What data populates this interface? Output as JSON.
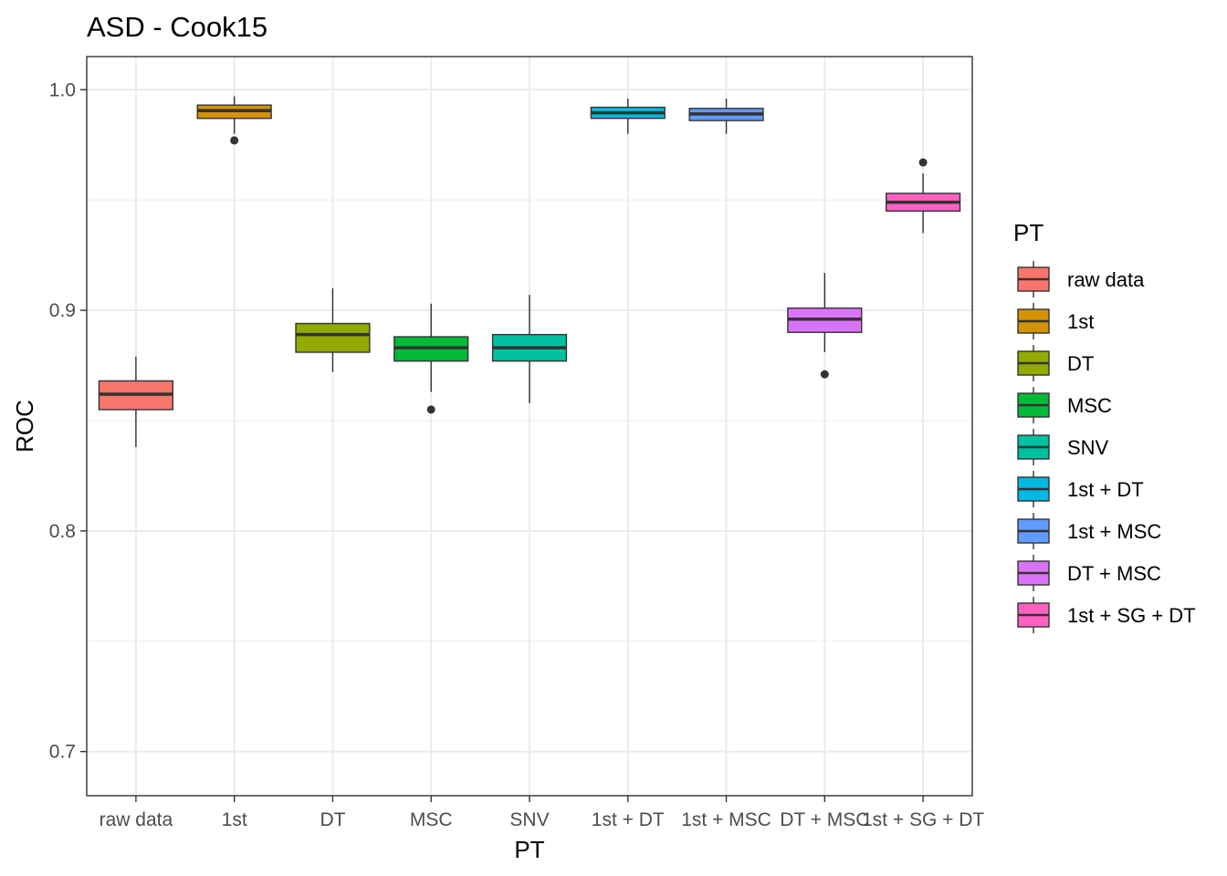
{
  "chart_data": {
    "type": "boxplot",
    "title": "ASD - Cook15",
    "xlabel": "PT",
    "ylabel": "ROC",
    "ylim": [
      0.68,
      1.015
    ],
    "yticks": [
      0.7,
      0.8,
      0.9,
      1.0
    ],
    "ytick_labels": [
      "0.7",
      "0.8",
      "0.9",
      "1.0"
    ],
    "grid": true,
    "legend": {
      "title": "PT",
      "position": "right"
    },
    "categories": [
      "raw data",
      "1st",
      "DT",
      "MSC",
      "SNV",
      "1st + DT",
      "1st + MSC",
      "DT + MSC",
      "1st + SG + DT"
    ],
    "series": [
      {
        "name": "raw data",
        "color": "#F8766D",
        "min": 0.838,
        "q1": 0.855,
        "median": 0.862,
        "q3": 0.868,
        "max": 0.879,
        "outliers": []
      },
      {
        "name": "1st",
        "color": "#D39200",
        "min": 0.98,
        "q1": 0.987,
        "median": 0.9905,
        "q3": 0.993,
        "max": 0.997,
        "outliers": [
          0.977
        ]
      },
      {
        "name": "DT",
        "color": "#93AA00",
        "min": 0.872,
        "q1": 0.881,
        "median": 0.889,
        "q3": 0.894,
        "max": 0.91,
        "outliers": []
      },
      {
        "name": "MSC",
        "color": "#00BA38",
        "min": 0.863,
        "q1": 0.877,
        "median": 0.883,
        "q3": 0.888,
        "max": 0.903,
        "outliers": [
          0.855
        ]
      },
      {
        "name": "SNV",
        "color": "#00C19F",
        "min": 0.858,
        "q1": 0.877,
        "median": 0.883,
        "q3": 0.889,
        "max": 0.907,
        "outliers": []
      },
      {
        "name": "1st + DT",
        "color": "#00B9E3",
        "min": 0.98,
        "q1": 0.987,
        "median": 0.9895,
        "q3": 0.992,
        "max": 0.996,
        "outliers": []
      },
      {
        "name": "1st + MSC",
        "color": "#619CFF",
        "min": 0.98,
        "q1": 0.986,
        "median": 0.989,
        "q3": 0.9915,
        "max": 0.996,
        "outliers": []
      },
      {
        "name": "DT + MSC",
        "color": "#DB72FB",
        "min": 0.881,
        "q1": 0.89,
        "median": 0.896,
        "q3": 0.901,
        "max": 0.917,
        "outliers": [
          0.871
        ]
      },
      {
        "name": "1st + SG + DT",
        "color": "#FF61C3",
        "min": 0.935,
        "q1": 0.945,
        "median": 0.949,
        "q3": 0.953,
        "max": 0.962,
        "outliers": [
          0.967
        ]
      }
    ]
  }
}
